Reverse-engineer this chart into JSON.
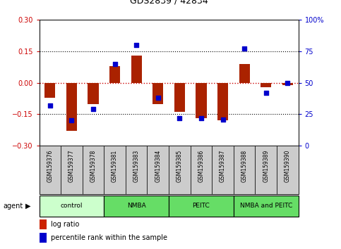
{
  "title": "GDS2839 / 42834",
  "samples": [
    "GSM159376",
    "GSM159377",
    "GSM159378",
    "GSM159381",
    "GSM159383",
    "GSM159384",
    "GSM159385",
    "GSM159386",
    "GSM159387",
    "GSM159388",
    "GSM159389",
    "GSM159390"
  ],
  "log_ratio": [
    -0.07,
    -0.23,
    -0.1,
    0.08,
    0.13,
    -0.1,
    -0.14,
    -0.17,
    -0.18,
    0.09,
    -0.02,
    -0.01
  ],
  "percentile": [
    32,
    20,
    29,
    65,
    80,
    38,
    22,
    22,
    21,
    77,
    42,
    50
  ],
  "groups": [
    {
      "label": "control",
      "start": 0,
      "end": 3,
      "color": "#ccffcc"
    },
    {
      "label": "NMBA",
      "start": 3,
      "end": 6,
      "color": "#66dd66"
    },
    {
      "label": "PEITC",
      "start": 6,
      "end": 9,
      "color": "#66dd66"
    },
    {
      "label": "NMBA and PEITC",
      "start": 9,
      "end": 12,
      "color": "#66dd66"
    }
  ],
  "ylim_left": [
    -0.3,
    0.3
  ],
  "ylim_right": [
    0,
    100
  ],
  "yticks_left": [
    -0.3,
    -0.15,
    0,
    0.15,
    0.3
  ],
  "yticks_right": [
    0,
    25,
    50,
    75,
    100
  ],
  "bar_color": "#aa2200",
  "dot_color": "#0000cc",
  "bar_width": 0.5,
  "dot_size": 22,
  "hline_color": "#cc0000",
  "sample_box_color": "#cccccc",
  "legend_log_ratio_color": "#cc2200",
  "legend_percentile_color": "#0000cc",
  "left_tick_color": "#cc0000",
  "right_tick_color": "#0000cc"
}
